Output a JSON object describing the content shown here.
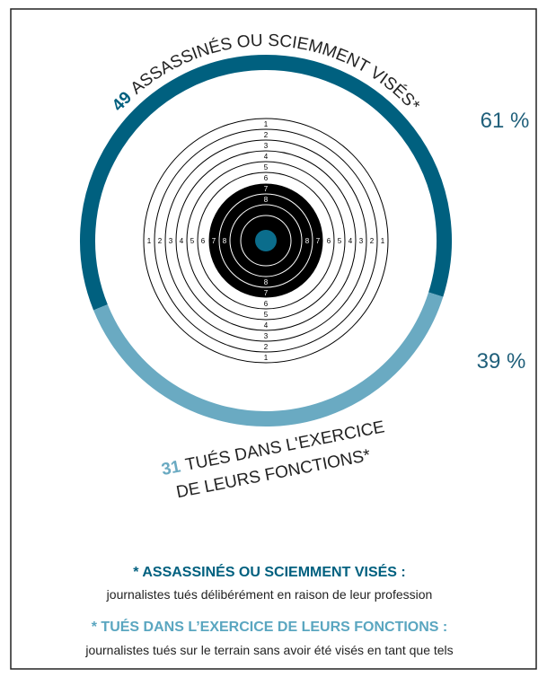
{
  "chart_data": {
    "type": "donut",
    "labels": [
      [
        "ASSASSINÉS OU SCIEMMENT VISÉS*"
      ],
      [
        "TUÉS DANS L'EXERCICE",
        "DE LEURS FONCTIONS*"
      ]
    ],
    "counts": [
      49,
      31
    ],
    "values": [
      61,
      39
    ],
    "value_labels": [
      "61 %",
      "39 %"
    ],
    "colors": [
      "#00607f",
      "#6aaac2"
    ],
    "target_rings": [
      1,
      2,
      3,
      4,
      5,
      6,
      7,
      8
    ],
    "notes": [
      {
        "title": "* ASSASSINÉS OU SCIEMMENT VISÉS :",
        "text": "journalistes tués délibérément en raison de leur profession"
      },
      {
        "title": "* TUÉS DANS L’EXERCICE DE LEURS FONCTIONS :",
        "text": "journalistes tués sur le terrain sans avoir été visés en tant que tels"
      }
    ]
  }
}
